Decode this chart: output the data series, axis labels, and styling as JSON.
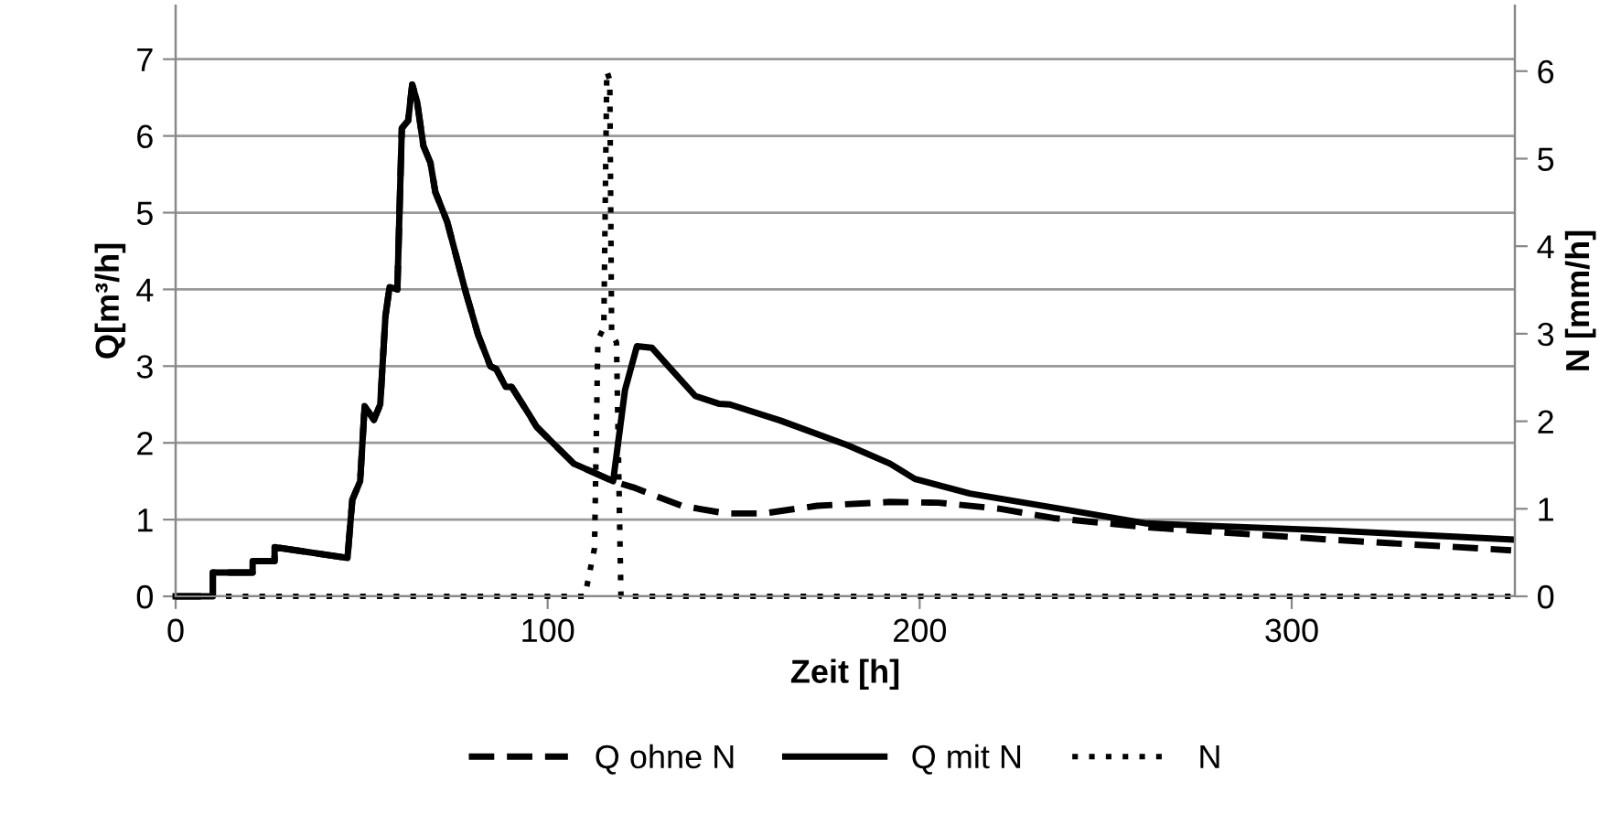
{
  "chart_data": {
    "type": "line",
    "xlabel": "Zeit [h]",
    "ylabel": "Q[m³/h]",
    "y2label": "N [mm/h]",
    "xlim": [
      0,
      360
    ],
    "xticks": [
      0,
      100,
      200,
      300
    ],
    "ylim": [
      0,
      7.7
    ],
    "yticks": [
      0,
      1,
      2,
      3,
      4,
      5,
      6,
      7
    ],
    "y2lim": [
      0,
      6.75
    ],
    "y2ticks": [
      0,
      1,
      2,
      3,
      4,
      5,
      6
    ],
    "grid": "y",
    "legend": "bottom",
    "series": [
      {
        "name": "Q ohne N",
        "color": "#000000",
        "line_style": "dashed",
        "x": [
          0,
          10,
          10,
          20.7,
          20.7,
          26.6,
          26.6,
          46.2,
          47.5,
          49.6,
          50.8,
          53.3,
          55,
          56.4,
          57.5,
          59.6,
          60.8,
          62.5,
          63.6,
          64.9,
          66.6,
          68.5,
          69.8,
          73,
          78,
          81.3,
          84.6,
          86.2,
          88.7,
          90.3,
          95.4,
          97,
          107,
          117.6,
          123,
          136,
          148,
          158,
          172.5,
          192,
          205,
          221.7,
          236,
          261,
          310,
          359
        ],
        "values": [
          0,
          0,
          0.31,
          0.31,
          0.46,
          0.46,
          0.64,
          0.5,
          1.26,
          1.5,
          2.48,
          2.3,
          2.5,
          3.65,
          4.03,
          4.0,
          6.1,
          6.2,
          6.67,
          6.45,
          5.87,
          5.65,
          5.27,
          4.88,
          3.96,
          3.41,
          3.0,
          2.96,
          2.73,
          2.73,
          2.34,
          2.21,
          1.73,
          1.5,
          1.42,
          1.18,
          1.08,
          1.08,
          1.18,
          1.23,
          1.22,
          1.14,
          1.02,
          0.9,
          0.74,
          0.6
        ]
      },
      {
        "name": "Q mit N",
        "color": "#000000",
        "line_style": "solid",
        "x": [
          0,
          10,
          10,
          20.7,
          20.7,
          26.6,
          26.6,
          46.2,
          47.5,
          49.6,
          50.8,
          53.3,
          55,
          56.4,
          57.5,
          59.6,
          60.8,
          62.5,
          63.6,
          64.9,
          66.6,
          68.5,
          69.8,
          73,
          78,
          81.3,
          84.6,
          86.2,
          88.7,
          90.3,
          95.4,
          97,
          107,
          117.6,
          120.8,
          124,
          128,
          133,
          139.7,
          146,
          149,
          162.6,
          180.6,
          192,
          198.7,
          213.5,
          238,
          261,
          310,
          359
        ],
        "values": [
          0,
          0,
          0.31,
          0.31,
          0.46,
          0.46,
          0.64,
          0.5,
          1.26,
          1.5,
          2.48,
          2.3,
          2.5,
          3.65,
          4.03,
          4.0,
          6.1,
          6.2,
          6.67,
          6.45,
          5.87,
          5.65,
          5.27,
          4.88,
          3.96,
          3.41,
          3.0,
          2.96,
          2.73,
          2.73,
          2.34,
          2.21,
          1.73,
          1.5,
          2.69,
          3.26,
          3.24,
          2.97,
          2.61,
          2.51,
          2.5,
          2.29,
          1.97,
          1.73,
          1.53,
          1.34,
          1.14,
          0.95,
          0.86,
          0.74
        ]
      },
      {
        "name": "N",
        "color": "#000000",
        "line_style": "dotted",
        "axis": "y2",
        "x": [
          0,
          110,
          112.6,
          113.5,
          115.1,
          115.9,
          116.7,
          117.2,
          118.5,
          119.7,
          360
        ],
        "values": [
          0,
          0,
          0.55,
          2.93,
          3.07,
          6.0,
          5.9,
          3.0,
          2.9,
          0,
          0
        ]
      }
    ]
  }
}
